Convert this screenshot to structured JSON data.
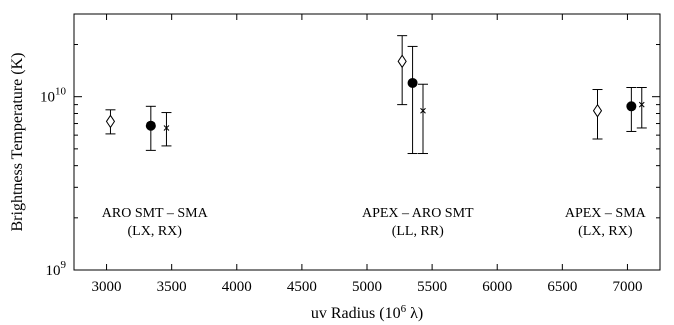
{
  "chart_data": {
    "type": "scatter",
    "xlabel": "uv Radius (10",
    "xlabel_sup": "6",
    "xlabel_unit": " λ)",
    "ylabel": "Brightness Temperature (K)",
    "xlim": [
      2750,
      7250
    ],
    "ylim": [
      1000000000,
      30000000000
    ],
    "yscale": "log",
    "grid": false,
    "x_ticks": [
      3000,
      3500,
      4000,
      4500,
      5000,
      5500,
      6000,
      6500,
      7000
    ],
    "x_tick_labels": [
      "3000",
      "3500",
      "4000",
      "4500",
      "5000",
      "5500",
      "6000",
      "6500",
      "7000"
    ],
    "y_ticks": [
      1000000000,
      10000000000
    ],
    "y_tick_labels": [
      {
        "base": "10",
        "exp": "9"
      },
      {
        "base": "10",
        "exp": "10"
      }
    ],
    "series": [
      {
        "marker": "open-diamond",
        "points": [
          {
            "x": 3030,
            "y": 7200000000,
            "lo": 6100000000,
            "hi": 8400000000
          },
          {
            "x": 5270,
            "y": 16000000000,
            "lo": 9000000000,
            "hi": 22500000000
          },
          {
            "x": 6770,
            "y": 8300000000,
            "lo": 5700000000,
            "hi": 11000000000
          }
        ]
      },
      {
        "marker": "filled-circle",
        "points": [
          {
            "x": 3340,
            "y": 6800000000,
            "lo": 4900000000,
            "hi": 8800000000
          },
          {
            "x": 5350,
            "y": 12000000000,
            "lo": 4700000000,
            "hi": 19500000000
          },
          {
            "x": 7030,
            "y": 8800000000,
            "lo": 6300000000,
            "hi": 11300000000
          }
        ]
      },
      {
        "marker": "cross",
        "points": [
          {
            "x": 3460,
            "y": 6600000000,
            "lo": 5200000000,
            "hi": 8100000000
          },
          {
            "x": 5430,
            "y": 8300000000,
            "lo": 4700000000,
            "hi": 11800000000
          },
          {
            "x": 7110,
            "y": 9000000000,
            "lo": 6600000000,
            "hi": 11300000000
          }
        ]
      }
    ],
    "annotations": [
      {
        "line1": "ARO SMT – SMA",
        "line2": "(LX, RX)",
        "x": 3370
      },
      {
        "line1": "APEX – ARO SMT",
        "line2": "(LL, RR)",
        "x": 5390
      },
      {
        "line1": "APEX – SMA",
        "line2": "(LX, RX)",
        "x": 6830
      }
    ]
  }
}
